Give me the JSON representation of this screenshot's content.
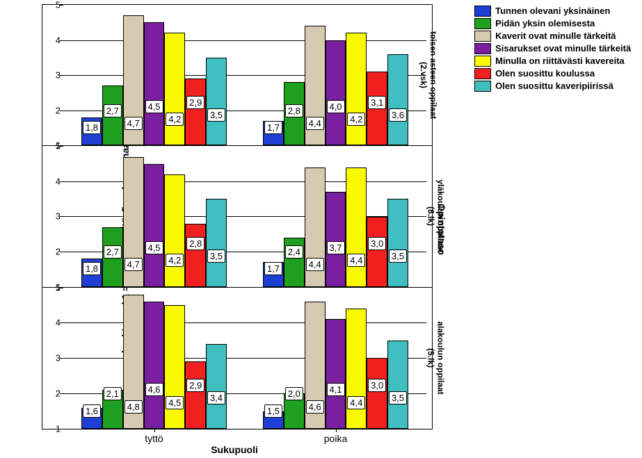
{
  "axes": {
    "y_label": "keskiarvo ( 1 = olen eri mieltä, 5 = olen samaa mieltä )",
    "x_label": "Sukupuoli",
    "right_main_label": "Opintotaso",
    "ylim": [
      1,
      5
    ],
    "yticks": [
      1,
      2,
      3,
      4,
      5
    ],
    "x_categories": [
      "tyttö",
      "poika"
    ]
  },
  "legend": [
    {
      "label": "Tunnen olevani yksinäinen",
      "color": "#1f3fd4"
    },
    {
      "label": "Pidän yksin olemisesta",
      "color": "#1fa01f"
    },
    {
      "label": "Kaverit ovat minulle tärkeitä",
      "color": "#d6cbb0"
    },
    {
      "label": "Sisarukset ovat minulle tärkeitä",
      "color": "#7a1fa0"
    },
    {
      "label": "Minulla on riittävästi kavereita",
      "color": "#f9f900"
    },
    {
      "label": "Olen suosittu koulussa",
      "color": "#f02020"
    },
    {
      "label": "Olen suosittu kaveripiirissä",
      "color": "#3fbfbf"
    }
  ],
  "panels": [
    {
      "right_label_1": "toisen asteen oppilaat",
      "right_label_2": "(2.vsk)",
      "groups": [
        {
          "cat": "tyttö",
          "values": [
            1.8,
            2.7,
            4.7,
            4.5,
            4.2,
            2.9,
            3.5
          ]
        },
        {
          "cat": "poika",
          "values": [
            1.7,
            2.8,
            4.4,
            4.0,
            4.2,
            3.1,
            3.6
          ]
        }
      ]
    },
    {
      "right_label_1": "yläkoulun oppilaat",
      "right_label_2": "(8.lk)",
      "groups": [
        {
          "cat": "tyttö",
          "values": [
            1.8,
            2.7,
            4.7,
            4.5,
            4.2,
            2.8,
            3.5
          ]
        },
        {
          "cat": "poika",
          "values": [
            1.7,
            2.4,
            4.4,
            3.7,
            4.4,
            3.0,
            3.5
          ]
        }
      ]
    },
    {
      "right_label_1": "alakoulun oppilaat",
      "right_label_2": "(5.lk)",
      "groups": [
        {
          "cat": "tyttö",
          "values": [
            1.6,
            2.1,
            4.8,
            4.6,
            4.5,
            2.9,
            3.4
          ]
        },
        {
          "cat": "poika",
          "values": [
            1.5,
            2.0,
            4.6,
            4.1,
            4.4,
            3.0,
            3.5
          ]
        }
      ]
    }
  ],
  "styling": {
    "bar_colors": [
      "#1f3fd4",
      "#1fa01f",
      "#d6cbb0",
      "#7a1fa0",
      "#f9f900",
      "#f02020",
      "#3fbfbf"
    ],
    "background": "#ffffff",
    "grid_color": "#000000"
  }
}
